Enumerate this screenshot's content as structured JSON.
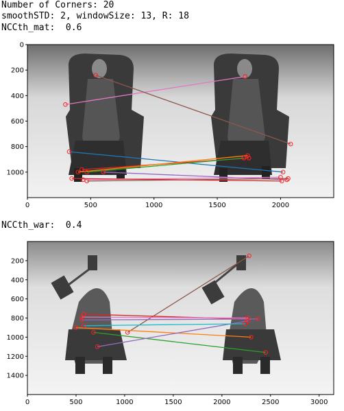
{
  "header": {
    "line1": "Number of Corners: 20",
    "line2": "smoothSTD: 2, windowSize: 13, R: 18",
    "line3": "NCCth_mat:  0.6"
  },
  "section2_label": "NCCth_war:  0.4",
  "chart_data": [
    {
      "type": "image-matches",
      "title": "",
      "x_ticks": [
        "0",
        "500",
        "1000",
        "1500",
        "2000"
      ],
      "y_ticks": [
        "0",
        "200",
        "400",
        "600",
        "800",
        "1000"
      ],
      "xlim": [
        0,
        2420
      ],
      "ylim": [
        1200,
        0
      ],
      "matches": [
        {
          "color": "#e377c2",
          "x1": 300,
          "y1": 470,
          "x2": 1720,
          "y2": 250
        },
        {
          "color": "#8c564b",
          "x1": 540,
          "y1": 240,
          "x2": 2080,
          "y2": 780
        },
        {
          "color": "#1f77b4",
          "x1": 330,
          "y1": 840,
          "x2": 2020,
          "y2": 1000
        },
        {
          "color": "#d62728",
          "x1": 430,
          "y1": 980,
          "x2": 1750,
          "y2": 890
        },
        {
          "color": "#ff7f0e",
          "x1": 400,
          "y1": 1000,
          "x2": 1740,
          "y2": 870
        },
        {
          "color": "#2ca02c",
          "x1": 470,
          "y1": 1000,
          "x2": 1710,
          "y2": 890
        },
        {
          "color": "#9467bd",
          "x1": 600,
          "y1": 1000,
          "x2": 2050,
          "y2": 1060
        },
        {
          "color": "#8c564b",
          "x1": 470,
          "y1": 1070,
          "x2": 2060,
          "y2": 1050
        },
        {
          "color": "#e377c2",
          "x1": 440,
          "y1": 1060,
          "x2": 2000,
          "y2": 1040
        },
        {
          "color": "#d62728",
          "x1": 350,
          "y1": 1050,
          "x2": 2010,
          "y2": 1070
        }
      ]
    },
    {
      "type": "image-matches",
      "title": "",
      "x_ticks": [
        "0",
        "500",
        "1000",
        "1500",
        "2000",
        "2500",
        "3000"
      ],
      "y_ticks": [
        "200",
        "400",
        "600",
        "800",
        "1000",
        "1200",
        "1400"
      ],
      "xlim": [
        0,
        3150
      ],
      "ylim": [
        1600,
        0
      ],
      "matches": [
        {
          "color": "#8c564b",
          "x1": 1030,
          "y1": 950,
          "x2": 2280,
          "y2": 150
        },
        {
          "color": "#d62728",
          "x1": 580,
          "y1": 760,
          "x2": 2250,
          "y2": 810
        },
        {
          "color": "#e377c2",
          "x1": 560,
          "y1": 790,
          "x2": 2270,
          "y2": 800
        },
        {
          "color": "#9467bd",
          "x1": 560,
          "y1": 820,
          "x2": 2370,
          "y2": 810
        },
        {
          "color": "#ff7f0e",
          "x1": 500,
          "y1": 900,
          "x2": 2300,
          "y2": 1000
        },
        {
          "color": "#2ca02c",
          "x1": 680,
          "y1": 950,
          "x2": 2450,
          "y2": 1160
        },
        {
          "color": "#9467bd",
          "x1": 720,
          "y1": 1100,
          "x2": 2270,
          "y2": 830
        },
        {
          "color": "#17becf",
          "x1": 580,
          "y1": 880,
          "x2": 2240,
          "y2": 860
        }
      ]
    }
  ]
}
